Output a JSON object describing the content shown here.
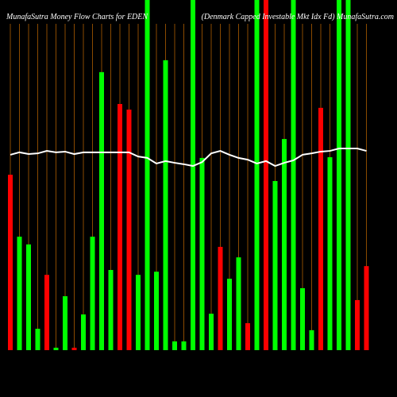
{
  "chart_data": {
    "type": "bar",
    "title": "MunafaSutra  Money Flow  Charts for EDEN",
    "subtitle": "(Denmark Capped Investable Mkt Idx Fd) MunafaSutra.com",
    "ylim": [
      0,
      100
    ],
    "series": [
      {
        "type": "bar",
        "colors": [
          "#ff0000",
          "#00ff00",
          "#00ff00",
          "#00ff00",
          "#ff0000",
          "#00ff00",
          "#00ff00",
          "#ff0000",
          "#00ff00",
          "#00ff00",
          "#00ff00",
          "#00ff00",
          "#ff0000",
          "#ff0000",
          "#00ff00",
          "#00ff00",
          "#00ff00",
          "#00ff00",
          "#00ff00",
          "#00ff00",
          "#00ff00",
          "#00ff00",
          "#00ff00",
          "#ff0000",
          "#00ff00",
          "#00ff00",
          "#ff0000",
          "#00ff00",
          "#ff0000",
          "#00ff00",
          "#00ff00",
          "#00ff00",
          "#00ff00",
          "#00ff00",
          "#ff0000",
          "#00ff00",
          "#00ff00",
          "#00ff00",
          "#ff0000",
          "#ff0000"
        ],
        "values": [
          50.1,
          32.4,
          30.2,
          6.1,
          21.5,
          0.7,
          15.4,
          0.7,
          10.2,
          32.4,
          79.4,
          22.9,
          70.3,
          68.7,
          21.5,
          100,
          22.4,
          82.8,
          2.5,
          2.5,
          100,
          54.9,
          10.4,
          29.5,
          20.4,
          26.5,
          7.7,
          100,
          100,
          48.3,
          60.3,
          100,
          17.7,
          5.7,
          69.2,
          55.1,
          100,
          100,
          14.3,
          24.0
        ]
      },
      {
        "type": "line",
        "color": "#ffffff",
        "values": [
          55.8,
          56.5,
          56.0,
          56.2,
          56.9,
          56.5,
          56.7,
          56.0,
          56.5,
          56.5,
          56.5,
          56.5,
          56.5,
          56.5,
          55.3,
          54.9,
          53.3,
          54.0,
          53.5,
          53.1,
          52.6,
          53.7,
          56.2,
          56.9,
          55.8,
          54.9,
          54.4,
          53.3,
          54.0,
          52.6,
          53.5,
          54.2,
          55.8,
          56.2,
          56.7,
          56.9,
          57.6,
          57.6,
          57.6,
          56.9
        ]
      }
    ]
  }
}
